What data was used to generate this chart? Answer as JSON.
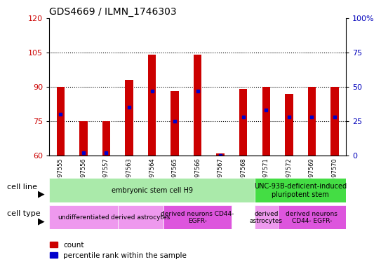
{
  "title": "GDS4669 / ILMN_1746303",
  "samples": [
    "GSM997555",
    "GSM997556",
    "GSM997557",
    "GSM997563",
    "GSM997564",
    "GSM997565",
    "GSM997566",
    "GSM997567",
    "GSM997568",
    "GSM997571",
    "GSM997572",
    "GSM997569",
    "GSM997570"
  ],
  "count_values": [
    90,
    75,
    75,
    93,
    104,
    88,
    104,
    61,
    89,
    90,
    87,
    90,
    90
  ],
  "percentile_values": [
    30,
    2,
    2,
    35,
    47,
    25,
    47,
    0,
    28,
    33,
    28,
    28,
    28
  ],
  "ylim_left": [
    60,
    120
  ],
  "ylim_right": [
    0,
    100
  ],
  "yticks_left": [
    60,
    75,
    90,
    105,
    120
  ],
  "yticks_right": [
    0,
    25,
    50,
    75,
    100
  ],
  "bar_color": "#cc0000",
  "dot_color": "#0000cc",
  "bar_bottom": 60,
  "cell_line_groups": [
    {
      "label": "embryonic stem cell H9",
      "start": 0,
      "end": 8,
      "color": "#aaeaaa"
    },
    {
      "label": "UNC-93B-deficient-induced\npluripotent stem",
      "start": 9,
      "end": 12,
      "color": "#44dd44"
    }
  ],
  "cell_type_groups": [
    {
      "label": "undifferentiated",
      "start": 0,
      "end": 2,
      "color": "#ee99ee"
    },
    {
      "label": "derived astrocytes",
      "start": 3,
      "end": 4,
      "color": "#ee99ee"
    },
    {
      "label": "derived neurons CD44-\nEGFR-",
      "start": 5,
      "end": 7,
      "color": "#dd55dd"
    },
    {
      "label": "derived\nastrocytes",
      "start": 9,
      "end": 9,
      "color": "#ee99ee"
    },
    {
      "label": "derived neurons\nCD44- EGFR-",
      "start": 10,
      "end": 12,
      "color": "#dd55dd"
    }
  ],
  "legend_count_color": "#cc0000",
  "legend_dot_color": "#0000cc",
  "bg_color": "#ffffff",
  "tick_label_color_left": "#cc0000",
  "tick_label_color_right": "#0000bb",
  "grid_lines": [
    75,
    90,
    105
  ]
}
